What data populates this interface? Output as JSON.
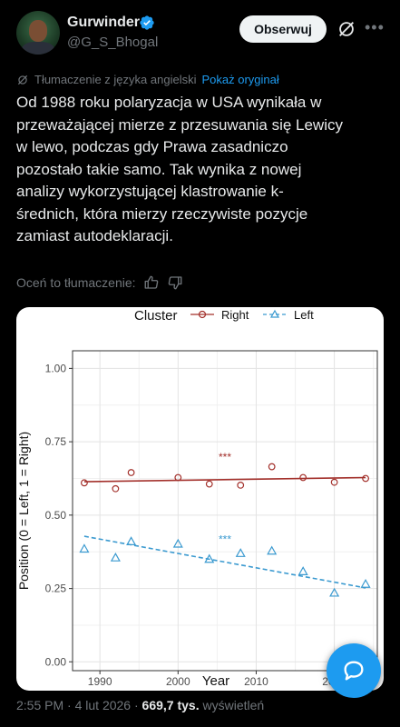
{
  "author": {
    "name": "Gurwinder",
    "handle": "@G_S_Bhogal",
    "follow_label": "Obserwuj"
  },
  "translation": {
    "note": "Tłumaczenie z języka angielski",
    "show_original": "Pokaż oryginał",
    "rate_label": "Oceń to tłumaczenie:"
  },
  "tweet": {
    "lines": [
      "Od 1988 roku polaryzacja w USA wynikała w",
      "przeważającej mierze z przesuwania się Lewicy",
      "w lewo, podczas gdy Prawa zasadniczo",
      "pozostało takie samo. Tak wynika z nowej",
      "analizy wykorzystującej klastrowanie k-",
      "średnich, która mierzy rzeczywiste pozycje",
      "zamiast autodeklaracji."
    ]
  },
  "footer": {
    "time": "2:55 PM",
    "sep1": "·",
    "date": "4 lut 2026",
    "sep2": "·",
    "views": "669,7 tys.",
    "views_label": "wyświetleń"
  },
  "colors": {
    "accent": "#1d9bf0",
    "right": "#a3302b",
    "left": "#3b9ad0"
  },
  "chart_data": {
    "type": "scatter",
    "legend": {
      "title": "Cluster",
      "entries": [
        "Right",
        "Left"
      ],
      "placement": "top"
    },
    "xlabel": "Year",
    "ylabel": "Position (0 = Left, 1 = Right)",
    "xlim": [
      1986.5,
      2025.5
    ],
    "ylim": [
      -0.03,
      1.06
    ],
    "xticks": [
      1990,
      2000,
      2010,
      2020
    ],
    "yticks": [
      0.0,
      0.25,
      0.5,
      0.75,
      1.0
    ],
    "ytick_labels": [
      "0.00",
      "0.25",
      "0.50",
      "0.75",
      "1.00"
    ],
    "grid": true,
    "series": [
      {
        "name": "Right",
        "marker": "circle",
        "x": [
          1988,
          1992,
          1994,
          2000,
          2004,
          2008,
          2012,
          2016,
          2020,
          2024
        ],
        "y": [
          0.61,
          0.59,
          0.645,
          0.628,
          0.606,
          0.602,
          0.665,
          0.628,
          0.612,
          0.625
        ],
        "trend": [
          [
            1988,
            0.614
          ],
          [
            2024,
            0.628
          ]
        ],
        "annotation": {
          "text": "***",
          "x": 2006,
          "y": 0.685
        }
      },
      {
        "name": "Left",
        "marker": "triangle",
        "x": [
          1988,
          1992,
          1994,
          2000,
          2004,
          2008,
          2012,
          2016,
          2020,
          2024
        ],
        "y": [
          0.385,
          0.355,
          0.41,
          0.402,
          0.35,
          0.37,
          0.378,
          0.308,
          0.235,
          0.265
        ],
        "trend": [
          [
            1988,
            0.428
          ],
          [
            2024,
            0.252
          ]
        ],
        "annotation": {
          "text": "***",
          "x": 2006,
          "y": 0.405
        }
      }
    ]
  }
}
